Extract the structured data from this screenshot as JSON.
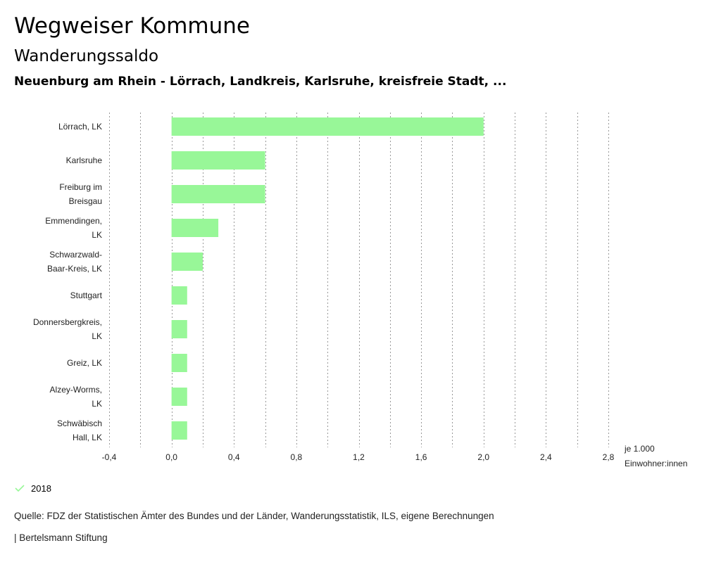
{
  "header": {
    "title": "Wegweiser Kommune",
    "subtitle": "Wanderungssaldo",
    "selection": "Neuenburg am Rhein - Lörrach, Landkreis, Karlsruhe, kreisfreie Stadt, ..."
  },
  "chart_data": {
    "type": "bar",
    "orientation": "horizontal",
    "categories": [
      [
        "Lörrach, LK"
      ],
      [
        "Karlsruhe"
      ],
      [
        "Freiburg im",
        "Breisgau"
      ],
      [
        "Emmendingen,",
        "LK"
      ],
      [
        "Schwarzwald-",
        "Baar-Kreis, LK"
      ],
      [
        "Stuttgart"
      ],
      [
        "Donnersbergkreis,",
        "LK"
      ],
      [
        "Greiz, LK"
      ],
      [
        "Alzey-Worms,",
        "LK"
      ],
      [
        "Schwäbisch",
        "Hall, LK"
      ]
    ],
    "series": [
      {
        "name": "2018",
        "values": [
          2.0,
          0.6,
          0.6,
          0.3,
          0.2,
          0.1,
          0.1,
          0.1,
          0.1,
          0.1
        ]
      }
    ],
    "xlim": [
      -0.4,
      2.8
    ],
    "x_ticks": [
      -0.4,
      0.0,
      0.4,
      0.8,
      1.2,
      1.6,
      2.0,
      2.4,
      2.8
    ],
    "x_tick_labels": [
      "-0,4",
      "0,0",
      "0,4",
      "0,8",
      "1,2",
      "1,6",
      "2,0",
      "2,4",
      "2,8"
    ],
    "xlabel": [
      "je 1.000",
      "Einwohner:innen"
    ],
    "grid": true,
    "bar_color": "#98f798",
    "grid_color": "#999999"
  },
  "legend": {
    "label": "2018",
    "color": "#98f798"
  },
  "footer": {
    "source": "Quelle: FDZ der Statistischen Ämter des Bundes und der Länder, Wanderungsstatistik, ILS, eigene Berechnungen",
    "credit": "| Bertelsmann Stiftung"
  }
}
